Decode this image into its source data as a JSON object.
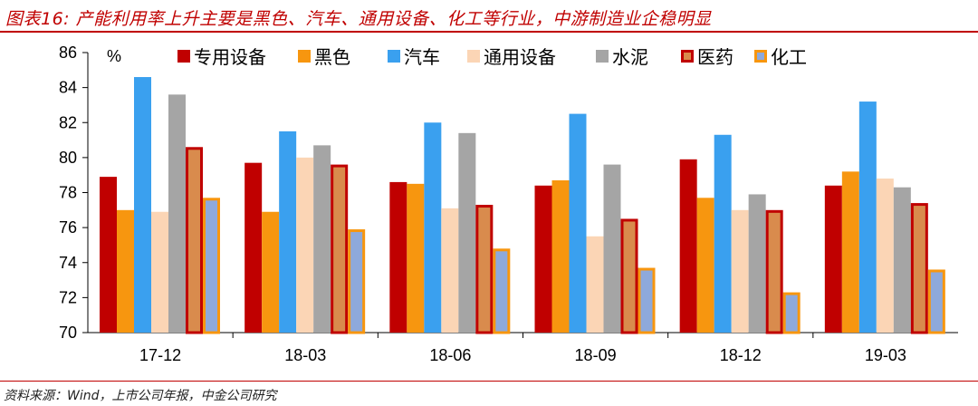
{
  "title": "图表16: 产能利用率上升主要是黑色、汽车、通用设备、化工等行业，中游制造业企稳明显",
  "source": "资料来源：Wind，上市公司年报，中金公司研究",
  "chart_data": {
    "type": "bar",
    "ylabel": "%",
    "ylim": [
      70,
      86
    ],
    "yticks": [
      70,
      72,
      74,
      76,
      78,
      80,
      82,
      84,
      86
    ],
    "categories": [
      "17-12",
      "18-03",
      "18-06",
      "18-09",
      "18-12",
      "19-03"
    ],
    "legend_position": "top",
    "series": [
      {
        "name": "专用设备",
        "color": "#c00000",
        "values": [
          78.9,
          79.7,
          78.6,
          78.4,
          79.9,
          78.4
        ]
      },
      {
        "name": "黑色",
        "color": "#f7960f",
        "values": [
          77.0,
          76.9,
          78.5,
          78.7,
          77.7,
          79.2
        ]
      },
      {
        "name": "汽车",
        "color": "#3aa0ef",
        "values": [
          84.6,
          81.5,
          82.0,
          82.5,
          81.3,
          83.2
        ]
      },
      {
        "name": "通用设备",
        "color": "#fbd5b5",
        "values": [
          76.9,
          80.0,
          77.1,
          75.5,
          77.0,
          78.8
        ]
      },
      {
        "name": "水泥",
        "color": "#a5a5a5",
        "values": [
          83.6,
          80.7,
          81.4,
          79.6,
          77.9,
          78.3
        ]
      },
      {
        "name": "医药",
        "color": "#d98b4d",
        "border": "#c00000",
        "values": [
          80.6,
          79.6,
          77.3,
          76.5,
          77.0,
          77.4
        ]
      },
      {
        "name": "化工",
        "color": "#8ea9db",
        "border": "#f7960f",
        "values": [
          77.7,
          75.9,
          74.8,
          73.7,
          72.3,
          73.6
        ]
      }
    ]
  }
}
